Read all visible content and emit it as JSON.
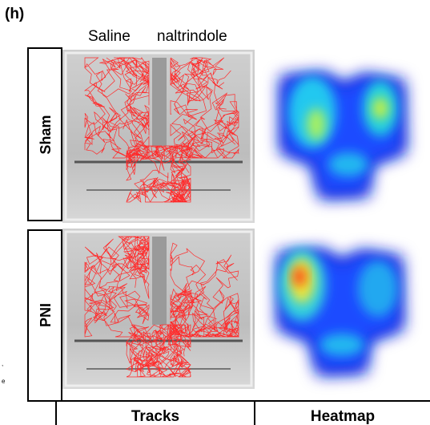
{
  "panel_label": "(h)",
  "columns": [
    "Saline",
    "naltrindole"
  ],
  "rows": [
    "Sham",
    "PNI"
  ],
  "footer": [
    "Tracks",
    "Heatmap"
  ],
  "cropped_text": [
    ",",
    "e"
  ]
}
